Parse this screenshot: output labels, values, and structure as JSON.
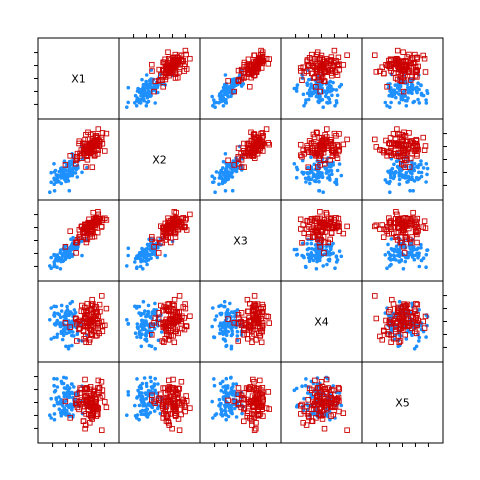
{
  "chart_data": {
    "type": "scatter-matrix",
    "variables": [
      "X1",
      "X2",
      "X3",
      "X4",
      "X5"
    ],
    "groups": [
      {
        "color": "#1e90ff",
        "marker": "filled-circle"
      },
      {
        "color": "#cc0000",
        "marker": "open-square"
      }
    ],
    "panel_range": [
      -3,
      3
    ],
    "grid": false,
    "samples_per_group": 100
  }
}
